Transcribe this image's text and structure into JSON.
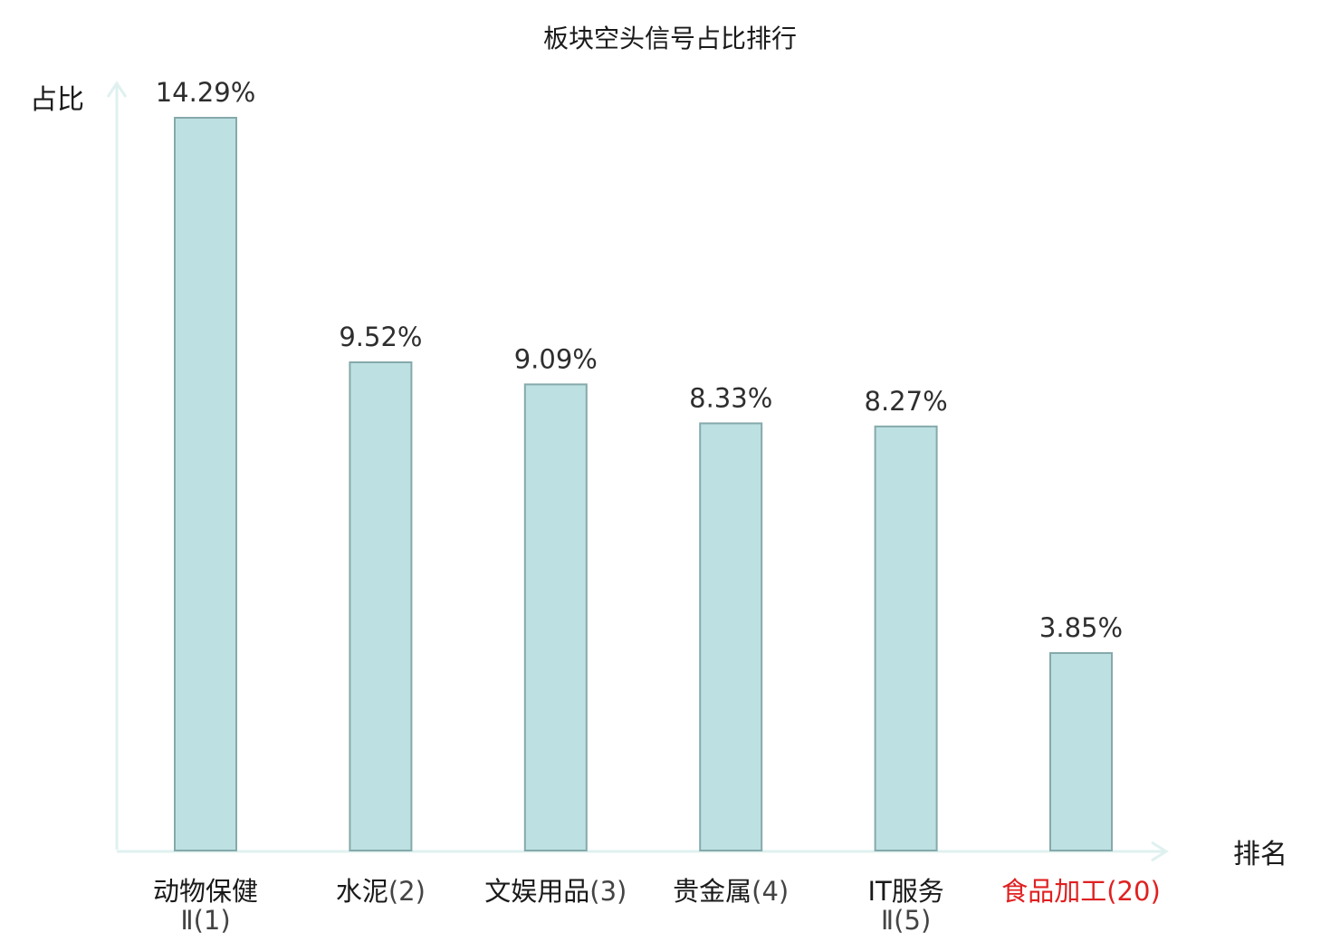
{
  "chart_data": {
    "type": "bar",
    "title": "板块空头信号占比排行",
    "ylabel": "占比",
    "xlabel": "排名",
    "ylim": [
      0,
      15
    ],
    "categories": [
      {
        "name": "动物保健",
        "suffix": "Ⅱ(1)",
        "wrap": true
      },
      {
        "name": "水泥",
        "suffix": "(2)",
        "wrap": false
      },
      {
        "name": "文娱用品",
        "suffix": "(3)",
        "wrap": false
      },
      {
        "name": "贵金属",
        "suffix": "(4)",
        "wrap": false
      },
      {
        "name": "IT服务",
        "suffix": "Ⅱ(5)",
        "wrap": true
      },
      {
        "name": "食品加工",
        "suffix": "(20)",
        "wrap": false,
        "highlight": true
      }
    ],
    "values": [
      14.29,
      9.52,
      9.09,
      8.33,
      8.27,
      3.85
    ],
    "value_labels": [
      "14.29%",
      "9.52%",
      "9.09%",
      "8.33%",
      "8.27%",
      "3.85%"
    ],
    "grid": false,
    "legend": "none",
    "colors": {
      "bar_fill": "#bde0e3",
      "bar_stroke": "#86a9ab",
      "axis": "#dff1ef",
      "highlight_text": "#e02020"
    }
  }
}
